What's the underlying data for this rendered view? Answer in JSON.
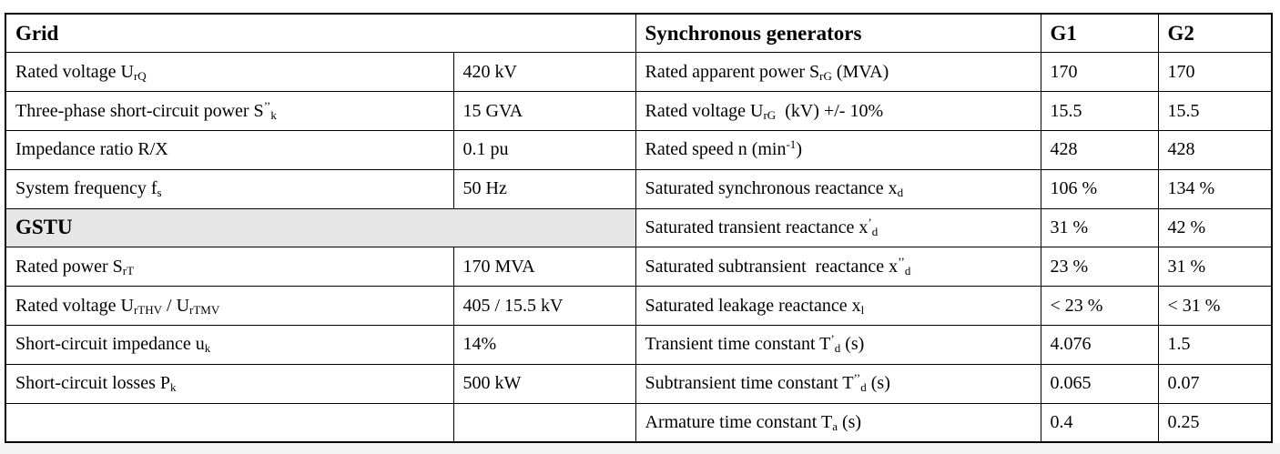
{
  "left": [
    {
      "heading": "Grid"
    },
    {
      "label": [
        "Rated voltage U",
        {
          "sub": "rQ"
        }
      ],
      "value": [
        "420 kV"
      ]
    },
    {
      "label": [
        "Three-phase short-circuit power S",
        {
          "sup": "’’"
        },
        {
          "sub": "k"
        }
      ],
      "value": [
        "15 GVA"
      ]
    },
    {
      "label": [
        "Impedance ratio R/X"
      ],
      "value": [
        "0.1 pu"
      ]
    },
    {
      "label": [
        "System frequency f",
        {
          "sub": "s"
        }
      ],
      "value": [
        "50 Hz"
      ]
    },
    {
      "heading": "GSTU",
      "shaded": true
    },
    {
      "label": [
        "Rated power S",
        {
          "sub": "rT"
        }
      ],
      "value": [
        "170 MVA"
      ]
    },
    {
      "label": [
        "Rated voltage U",
        {
          "sub": "rTHV"
        },
        " / U",
        {
          "sub": "rTMV"
        }
      ],
      "value": [
        "405 / 15.5 kV"
      ]
    },
    {
      "label": [
        "Short-circuit impedance u",
        {
          "sub": "k"
        }
      ],
      "value": [
        "14%"
      ]
    },
    {
      "label": [
        "Short-circuit losses P",
        {
          "sub": "k"
        }
      ],
      "value": [
        "500 kW"
      ]
    }
  ],
  "right": {
    "header": [
      "Synchronous generators",
      "G1",
      "G2"
    ],
    "rows": [
      {
        "label": [
          "Rated apparent power S",
          {
            "sub": "rG"
          },
          " (MVA)"
        ],
        "g1": "170",
        "g2": "170"
      },
      {
        "label": [
          "Rated voltage U",
          {
            "sub": "rG"
          },
          "  (kV) +/- 10%"
        ],
        "g1": "15.5",
        "g2": "15.5"
      },
      {
        "label": [
          "Rated speed n (min",
          {
            "sup": "-1"
          },
          ")"
        ],
        "g1": "428",
        "g2": "428"
      },
      {
        "label": [
          "Saturated synchronous reactance x",
          {
            "sub": "d"
          }
        ],
        "g1": "106 %",
        "g2": "134 %"
      },
      {
        "label": [
          "Saturated transient reactance x",
          {
            "sup": "’"
          },
          {
            "sub": "d"
          }
        ],
        "g1": "31 %",
        "g2": "42 %"
      },
      {
        "label": [
          "Saturated subtransient  reactance x",
          {
            "sup": "’’"
          },
          {
            "sub": "d"
          }
        ],
        "g1": "23 %",
        "g2": "31 %"
      },
      {
        "label": [
          "Saturated leakage reactance x",
          {
            "sub": "l"
          }
        ],
        "g1": "< 23 %",
        "g2": "< 31 %"
      },
      {
        "label": [
          "Transient time constant T",
          {
            "sup": "’"
          },
          {
            "sub": "d"
          },
          " (s)"
        ],
        "g1": "4.076",
        "g2": "1.5"
      },
      {
        "label": [
          "Subtransient time constant T",
          {
            "sup": "’’"
          },
          {
            "sub": "d"
          },
          " (s)"
        ],
        "g1": "0.065",
        "g2": "0.07"
      },
      {
        "label": [
          "Armature time constant T",
          {
            "sub": "a"
          },
          " (s)"
        ],
        "g1": "0.4",
        "g2": "0.25"
      }
    ]
  }
}
